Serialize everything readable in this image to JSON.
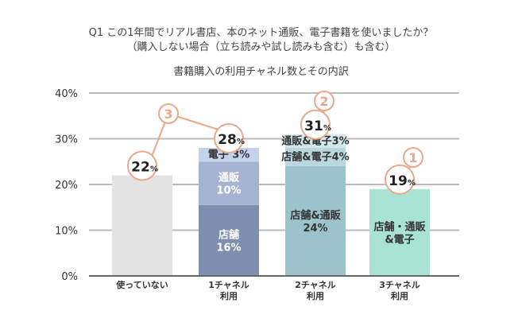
{
  "question": {
    "line1": "Q1 この1年間でリアル書店、本のネット通販、電子書籍を使いましたか？",
    "line2": "（購入しない場合（立ち読みや試し読みも含む）も含む）"
  },
  "chart_data": {
    "type": "bar",
    "stacked": true,
    "title": "書籍購入の利用チャネル数とその内訳",
    "ylim": [
      0,
      40
    ],
    "yticks": [
      "0%",
      "10%",
      "20%",
      "30%",
      "40%"
    ],
    "grid": true,
    "categories": [
      {
        "label": [
          "使っていない"
        ],
        "total": 22,
        "total_label": "22",
        "rank": "3",
        "segments": [
          {
            "label": [
              "",
              ""
            ],
            "value": 22,
            "color": "#e3e3e3"
          }
        ]
      },
      {
        "label": [
          "1チャネル",
          "利用"
        ],
        "total": 28,
        "total_label": "28",
        "rank": "",
        "segments": [
          {
            "label": [
              "店舗",
              "16%"
            ],
            "value": 15.5,
            "color": "#7f8fb0"
          },
          {
            "label": [
              "通販",
              "10%"
            ],
            "value": 9.5,
            "color": "#a6b4d4"
          },
          {
            "label": [
              "電子 3%",
              ""
            ],
            "value": 3,
            "color": "#c5d2ec"
          }
        ]
      },
      {
        "label": [
          "2チャネル",
          "利用"
        ],
        "total": 31,
        "total_label": "31",
        "rank": "2",
        "segments": [
          {
            "label": [
              "店舗&通販",
              "24%"
            ],
            "value": 24,
            "color": "#9cc2cc"
          },
          {
            "label": [
              "店舗&電子4%",
              ""
            ],
            "value": 4,
            "color": "#b8d7de"
          },
          {
            "label": [
              "通販&電子3%",
              ""
            ],
            "value": 3,
            "color": "#d3e8ec"
          }
        ]
      },
      {
        "label": [
          "3チャネル",
          "利用"
        ],
        "total": 19,
        "total_label": "19",
        "rank": "1",
        "segments": [
          {
            "label": [
              "店舗・通販",
              "&電子"
            ],
            "value": 19,
            "color": "#a8e3d3"
          }
        ]
      }
    ],
    "percent_sign": "%",
    "colors": {
      "rank_circle": "#e9a989",
      "grid": "#bbbbbb",
      "axis": "#666666"
    }
  }
}
